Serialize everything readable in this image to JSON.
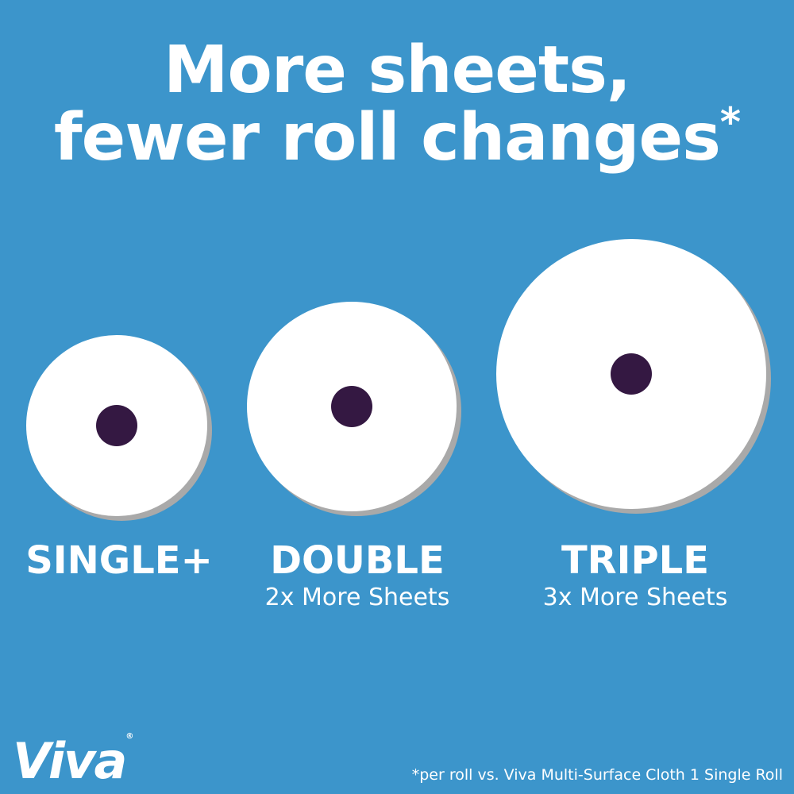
{
  "headline": {
    "line1": "More sheets,",
    "line2": "fewer roll changes",
    "asterisk": "*"
  },
  "rolls": [
    {
      "label": "SINGLE+",
      "subtitle": ""
    },
    {
      "label": "DOUBLE",
      "subtitle": "2x More Sheets"
    },
    {
      "label": "TRIPLE",
      "subtitle": "3x More Sheets"
    }
  ],
  "brand": {
    "logo": "Viva",
    "registered": "®"
  },
  "footnote": "*per roll vs. Viva Multi-Surface Cloth 1 Single Roll",
  "colors": {
    "background": "#3c95cb",
    "roll": "#ffffff",
    "core": "#341842",
    "shadow": "#a9a9a9"
  }
}
